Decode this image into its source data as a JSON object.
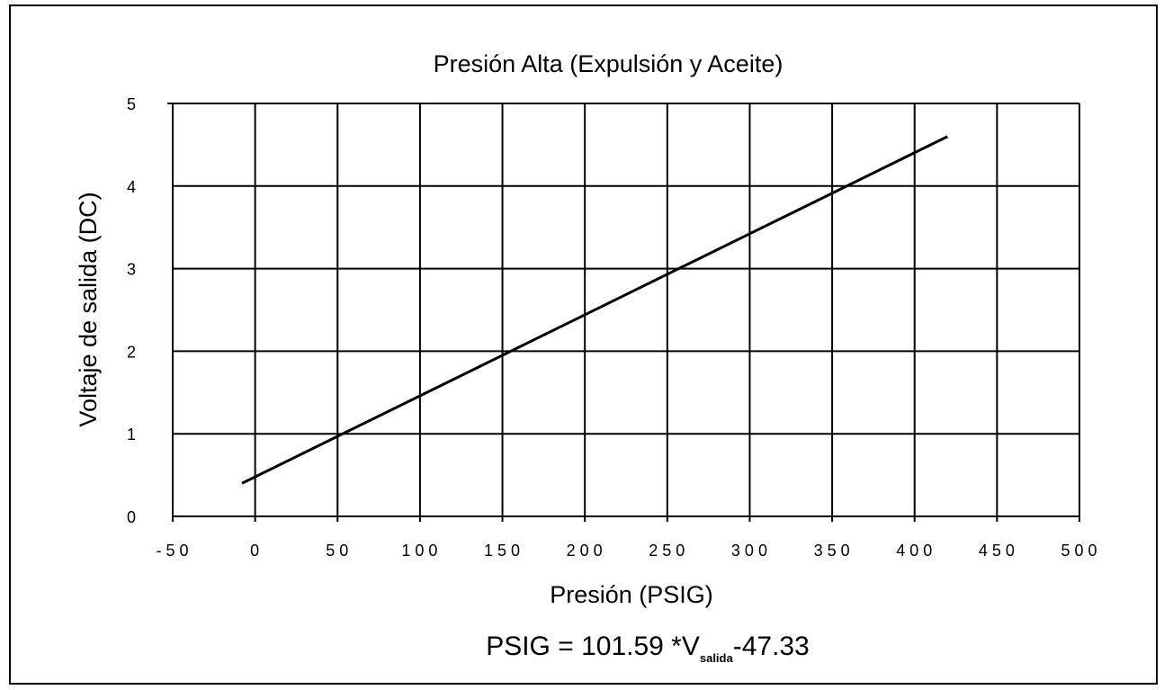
{
  "chart_data": {
    "type": "line",
    "title": "Presión Alta (Expulsión y Aceite)",
    "xlabel": "Presión (PSIG)",
    "ylabel": "Voltaje de salida (DC)",
    "xlim": [
      -50,
      500
    ],
    "ylim": [
      0,
      5
    ],
    "x_ticks": [
      "-50",
      "0",
      "50",
      "100",
      "150",
      "200",
      "250",
      "300",
      "350",
      "400",
      "450",
      "500"
    ],
    "y_ticks": [
      "0",
      "1",
      "2",
      "3",
      "4",
      "5"
    ],
    "grid": true,
    "series": [
      {
        "x": [
          -8,
          420
        ],
        "y": [
          0.4,
          4.6
        ],
        "color": "#000000"
      }
    ],
    "annotation": {
      "prefix": "PSIG = 101.59 *V",
      "subscript": "salida",
      "suffix": "-47.33"
    }
  }
}
